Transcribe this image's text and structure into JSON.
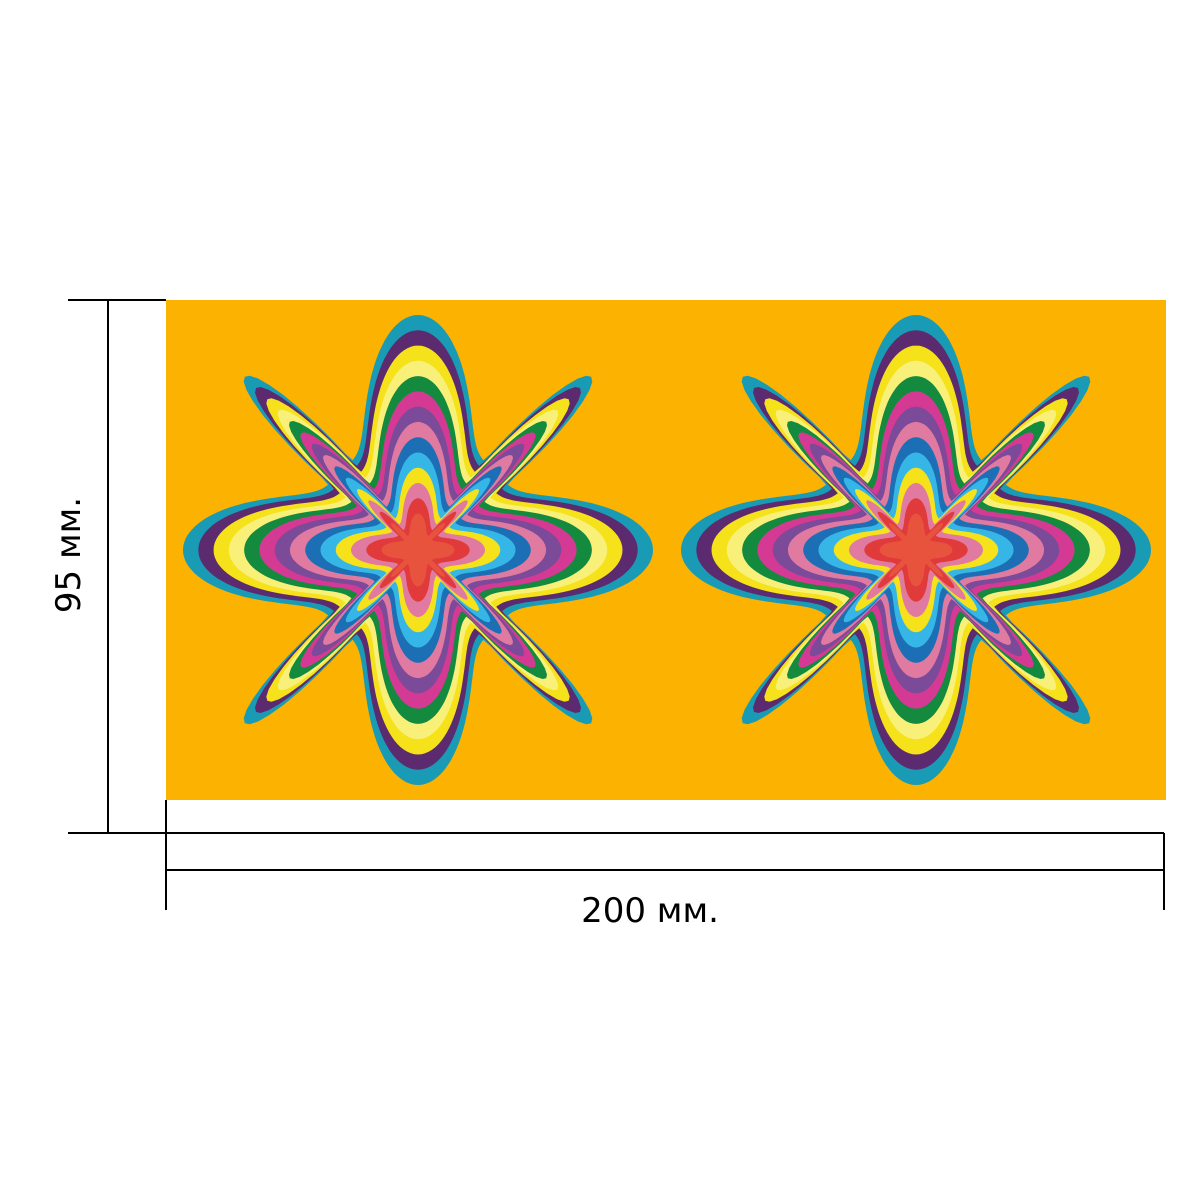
{
  "height_label": "95 мм.",
  "width_label": "200 мм."
}
